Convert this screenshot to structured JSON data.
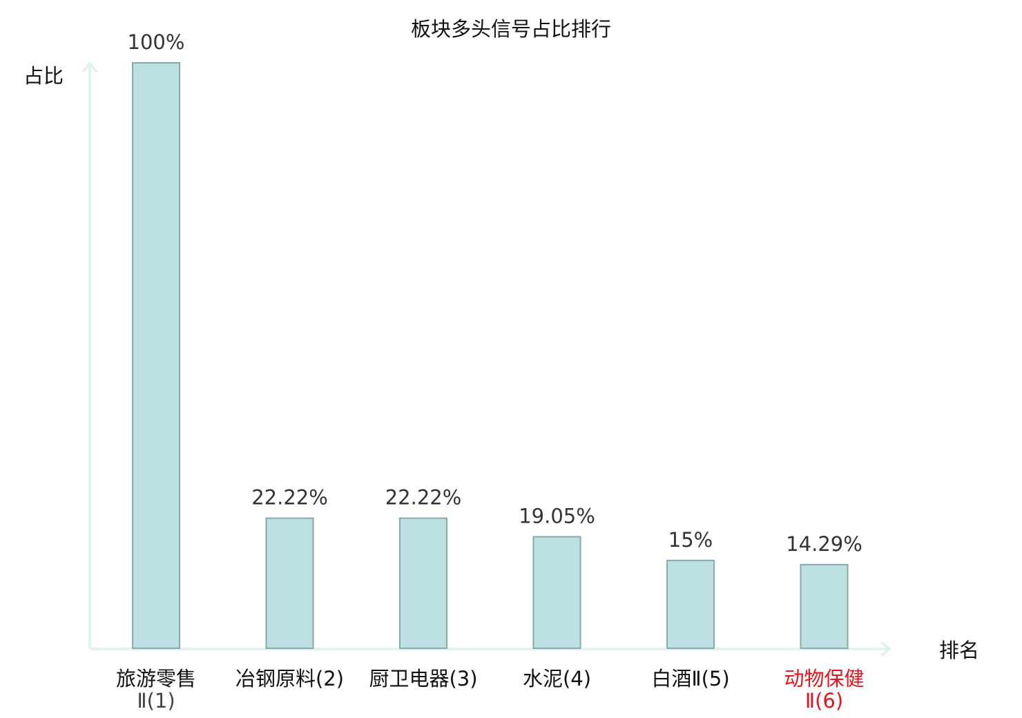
{
  "chart_data": {
    "type": "bar",
    "title": "板块多头信号占比排行",
    "ylabel": "占比",
    "xlabel": "排名",
    "ylim": [
      0,
      100
    ],
    "grid": false,
    "highlight_color": "#e8141b",
    "bar_color": "#bde0e3",
    "bar_edge_color": "#86a9ac",
    "axis_color": "#e1f3f0",
    "categories": [
      {
        "line1": "旅游零售",
        "line2": "Ⅱ(1)",
        "highlight": false
      },
      {
        "line1": "冶钢原料(2)",
        "line2": "",
        "highlight": false
      },
      {
        "line1": "厨卫电器(3)",
        "line2": "",
        "highlight": false
      },
      {
        "line1": "水泥(4)",
        "line2": "",
        "highlight": false
      },
      {
        "line1": "白酒Ⅱ(5)",
        "line2": "",
        "highlight": false
      },
      {
        "line1": "动物保健",
        "line2": "Ⅱ(6)",
        "highlight": true
      }
    ],
    "values": [
      100,
      22.22,
      22.22,
      19.05,
      15,
      14.29
    ],
    "value_labels": [
      "100%",
      "22.22%",
      "22.22%",
      "19.05%",
      "15%",
      "14.29%"
    ]
  }
}
